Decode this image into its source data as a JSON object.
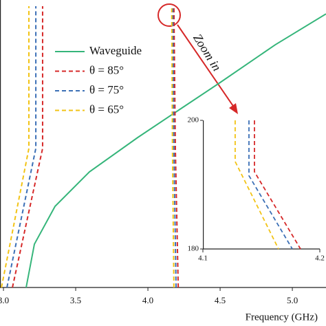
{
  "chart_data": [
    {
      "type": "line",
      "xlabel": "Frequency (GHz)",
      "xlim": [
        2.976,
        5.233
      ],
      "ylim": [
        0,
        186
      ],
      "xticks": [
        {
          "value": 3,
          "label": "3.0"
        },
        3.5,
        {
          "value": 4,
          "label": "4.0"
        },
        4.5,
        {
          "value": 5,
          "label": "5.0"
        }
      ],
      "legend": "upper left",
      "annotations": [
        "Zoom in"
      ],
      "series": [
        {
          "name": "Waveguide",
          "color": "#35b57a",
          "dashed": false,
          "x": [
            3.157,
            3.214,
            3.357,
            3.595,
            3.929,
            4.214,
            4.5,
            4.881,
            5.233
          ],
          "values": [
            0,
            28,
            52.5,
            74.8,
            97,
            114.8,
            132.6,
            157,
            177
          ]
        },
        {
          "name": "θ = 85°",
          "color": "#d62828",
          "dashed": true,
          "x": [
            3.062,
            3.271,
            3.271,
            null,
            4.21,
            4.19,
            4.18
          ],
          "values": [
            0,
            90,
            182,
            null,
            0,
            90,
            182
          ]
        },
        {
          "name": "θ = 75°",
          "color": "#3b6fb6",
          "dashed": true,
          "x": [
            3.024,
            3.224,
            3.224,
            null,
            4.195,
            4.18,
            4.172
          ],
          "values": [
            0,
            90,
            182,
            null,
            0,
            90,
            182
          ]
        },
        {
          "name": "θ = 65°",
          "color": "#f2c314",
          "dashed": true,
          "x": [
            2.986,
            3.176,
            3.176,
            null,
            4.18,
            4.17,
            4.165
          ],
          "values": [
            0,
            90,
            182,
            null,
            0,
            90,
            182
          ]
        }
      ]
    },
    {
      "type": "line",
      "xlim": [
        4.1,
        4.2
      ],
      "ylim": [
        180,
        200
      ],
      "xticks": [
        4.1,
        4.2
      ],
      "yticks": [
        180,
        200
      ],
      "series": [
        {
          "color": "#d62828",
          "dashed": true,
          "x": [
            4.1441,
            4.1441,
            4.1835
          ],
          "values": [
            200,
            192,
            180
          ]
        },
        {
          "color": "#3b6fb6",
          "dashed": true,
          "x": [
            4.1394,
            4.1394,
            4.1765
          ],
          "values": [
            200,
            191.4,
            180
          ]
        },
        {
          "color": "#f2c314",
          "dashed": true,
          "x": [
            4.1276,
            4.1276,
            4.1647
          ],
          "values": [
            200,
            193.6,
            180
          ]
        }
      ]
    }
  ]
}
